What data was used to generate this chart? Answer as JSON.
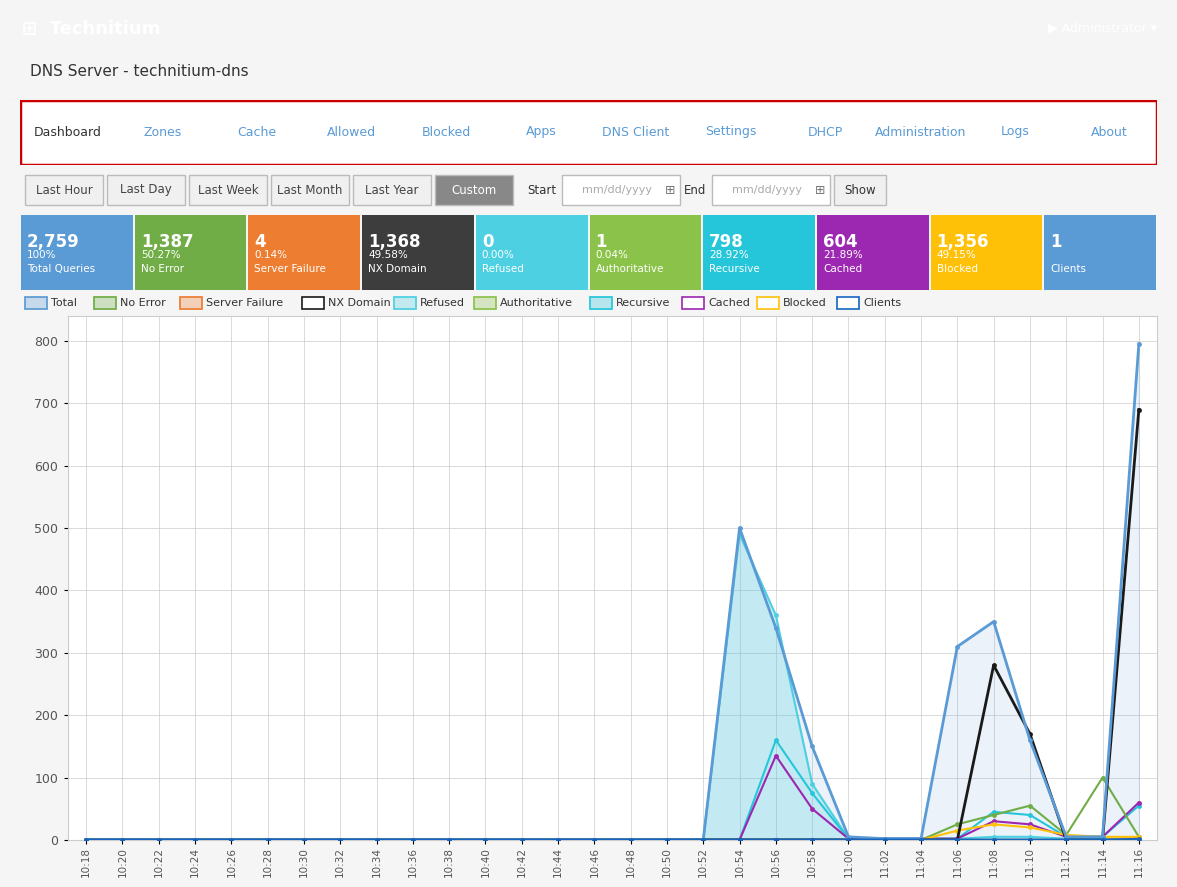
{
  "title": "DNS Server - technitium-dns",
  "header_text": "Technitium",
  "header_color": "#5b9bd5",
  "nav_items": [
    "Dashboard",
    "Zones",
    "Cache",
    "Allowed",
    "Blocked",
    "Apps",
    "DNS Client",
    "Settings",
    "DHCP",
    "Administration",
    "Logs",
    "About"
  ],
  "active_nav": "Dashboard",
  "time_buttons": [
    "Last Hour",
    "Last Day",
    "Last Week",
    "Last Month",
    "Last Year",
    "Custom"
  ],
  "active_time": "Custom",
  "stats": [
    {
      "value": "2,759",
      "pct": "100%",
      "label": "Total Queries",
      "color": "#5b9bd5"
    },
    {
      "value": "1,387",
      "pct": "50.27%",
      "label": "No Error",
      "color": "#70ad47"
    },
    {
      "value": "4",
      "pct": "0.14%",
      "label": "Server Failure",
      "color": "#ed7d31"
    },
    {
      "value": "1,368",
      "pct": "49.58%",
      "label": "NX Domain",
      "color": "#3d3d3d"
    },
    {
      "value": "0",
      "pct": "0.00%",
      "label": "Refused",
      "color": "#4dd0e1"
    },
    {
      "value": "1",
      "pct": "0.04%",
      "label": "Authoritative",
      "color": "#8bc34a"
    },
    {
      "value": "798",
      "pct": "28.92%",
      "label": "Recursive",
      "color": "#26c6da"
    },
    {
      "value": "604",
      "pct": "21.89%",
      "label": "Cached",
      "color": "#9c27b0"
    },
    {
      "value": "1,356",
      "pct": "49.15%",
      "label": "Blocked",
      "color": "#ffc107"
    },
    {
      "value": "1",
      "pct": "",
      "label": "Clients",
      "color": "#5b9bd5"
    }
  ],
  "x_labels": [
    "10:18",
    "10:20",
    "10:22",
    "10:24",
    "10:26",
    "10:28",
    "10:30",
    "10:32",
    "10:34",
    "10:36",
    "10:38",
    "10:40",
    "10:42",
    "10:44",
    "10:46",
    "10:48",
    "10:50",
    "10:52",
    "10:54",
    "10:56",
    "10:58",
    "11:00",
    "11:02",
    "11:04",
    "11:06",
    "11:08",
    "11:10",
    "11:12",
    "11:14",
    "11:16"
  ],
  "series": {
    "Total": [
      0,
      0,
      0,
      0,
      0,
      0,
      0,
      0,
      0,
      0,
      0,
      0,
      0,
      0,
      0,
      0,
      0,
      0,
      500,
      340,
      150,
      5,
      2,
      2,
      310,
      350,
      160,
      5,
      5,
      795
    ],
    "No Error": [
      0,
      0,
      0,
      0,
      0,
      0,
      0,
      0,
      0,
      0,
      0,
      0,
      0,
      0,
      0,
      0,
      0,
      0,
      0,
      0,
      0,
      0,
      0,
      0,
      25,
      40,
      55,
      8,
      100,
      5
    ],
    "Server Failure": [
      0,
      0,
      0,
      0,
      0,
      0,
      0,
      0,
      0,
      0,
      0,
      0,
      0,
      0,
      0,
      0,
      0,
      0,
      0,
      0,
      0,
      0,
      0,
      2,
      0,
      0,
      0,
      0,
      0,
      2
    ],
    "NX Domain": [
      0,
      0,
      0,
      0,
      0,
      0,
      0,
      0,
      0,
      0,
      0,
      0,
      0,
      0,
      0,
      0,
      0,
      0,
      0,
      0,
      0,
      0,
      0,
      0,
      0,
      280,
      170,
      0,
      0,
      690
    ],
    "Refused": [
      0,
      0,
      0,
      0,
      0,
      0,
      0,
      0,
      0,
      0,
      0,
      0,
      0,
      0,
      0,
      0,
      0,
      0,
      490,
      360,
      90,
      2,
      2,
      2,
      2,
      5,
      5,
      2,
      2,
      2
    ],
    "Authoritative": [
      0,
      0,
      0,
      0,
      0,
      0,
      0,
      0,
      0,
      0,
      0,
      0,
      0,
      0,
      0,
      0,
      0,
      0,
      0,
      0,
      0,
      0,
      0,
      0,
      0,
      0,
      0,
      0,
      0,
      5
    ],
    "Recursive": [
      0,
      0,
      0,
      0,
      0,
      0,
      0,
      0,
      0,
      0,
      0,
      0,
      0,
      0,
      0,
      0,
      0,
      0,
      0,
      160,
      75,
      2,
      2,
      2,
      2,
      45,
      40,
      5,
      5,
      55
    ],
    "Cached": [
      0,
      0,
      0,
      0,
      0,
      0,
      0,
      0,
      0,
      0,
      0,
      0,
      0,
      0,
      0,
      0,
      0,
      0,
      0,
      135,
      50,
      2,
      2,
      2,
      2,
      30,
      25,
      5,
      5,
      60
    ],
    "Blocked": [
      0,
      0,
      0,
      0,
      0,
      0,
      0,
      0,
      0,
      0,
      0,
      0,
      0,
      0,
      0,
      0,
      0,
      0,
      0,
      0,
      0,
      0,
      0,
      0,
      15,
      25,
      20,
      8,
      5,
      5
    ],
    "Clients": [
      0,
      0,
      0,
      0,
      0,
      0,
      0,
      0,
      0,
      0,
      0,
      0,
      0,
      0,
      0,
      0,
      0,
      0,
      0,
      0,
      0,
      0,
      0,
      0,
      0,
      0,
      0,
      0,
      0,
      1
    ]
  },
  "series_colors": {
    "Total": "#5b9bd5",
    "No Error": "#70ad47",
    "Server Failure": "#ed7d31",
    "NX Domain": "#1a1a1a",
    "Refused": "#4dd0e1",
    "Authoritative": "#8bc34a",
    "Recursive": "#26c6da",
    "Cached": "#9c27b0",
    "Blocked": "#ffc107",
    "Clients": "#1565c0"
  },
  "ylim": [
    0,
    840
  ],
  "yticks": [
    0,
    100,
    200,
    300,
    400,
    500,
    600,
    700,
    800
  ],
  "grid_color": "#cccccc",
  "bg_white": "#ffffff",
  "bg_light": "#f5f5f5"
}
